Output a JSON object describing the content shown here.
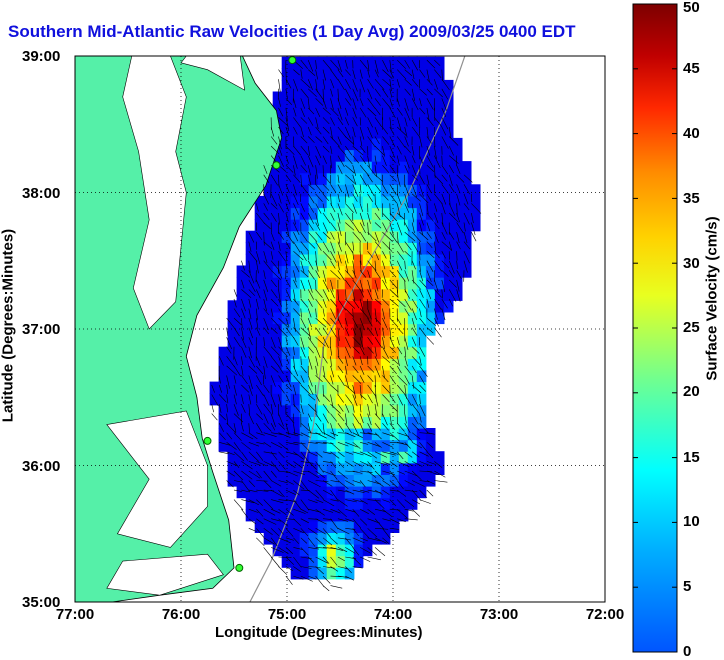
{
  "title": "Southern Mid-Atlantic Raw Velocities (1 Day Avg) 2009/03/25 0400 EDT",
  "map": {
    "lon_range": [
      -77,
      -72
    ],
    "lat_range": [
      35,
      39
    ],
    "grid": true,
    "lon_ticks": [
      "77:00",
      "76:00",
      "75:00",
      "74:00",
      "73:00",
      "72:00"
    ],
    "lat_ticks": [
      "39:00",
      "38:00",
      "37:00",
      "36:00",
      "35:00"
    ],
    "xlabel": "Longitude (Degrees:Minutes)",
    "ylabel": "Latitude (Degrees:Minutes)",
    "land_color": "#55f0a8",
    "vector_color": "#000000",
    "stations": [
      {
        "lon": -74.95,
        "lat": 38.97
      },
      {
        "lon": -75.1,
        "lat": 38.2
      },
      {
        "lon": -75.75,
        "lat": 36.18
      },
      {
        "lon": -75.45,
        "lat": 35.25
      }
    ]
  },
  "colorbar": {
    "label": "Surface Velocity (cm/s)",
    "min": 0,
    "max": 50,
    "ticks": [
      "50",
      "45",
      "40",
      "35",
      "30",
      "25",
      "20",
      "15",
      "10",
      "5",
      "0"
    ],
    "colormap": "jet"
  }
}
